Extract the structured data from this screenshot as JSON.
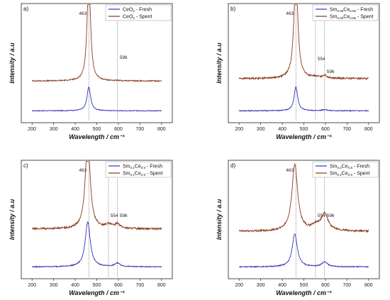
{
  "chart_data": [
    {
      "type": "line",
      "panel_label": "a)",
      "xlabel": "Wavelength / cm⁻¹",
      "ylabel": "Intensity / a.u",
      "xlim": [
        150,
        850
      ],
      "xticks": [
        200,
        300,
        400,
        500,
        600,
        700,
        800
      ],
      "ylim": [
        0,
        100
      ],
      "grid": false,
      "legend_position": "top-right",
      "peaks": [
        {
          "x": 463,
          "label": "463"
        },
        {
          "x": 596,
          "label": "596"
        }
      ],
      "series": [
        {
          "legend": {
            "base": "CeO",
            "sub1": "2",
            "mid": "",
            "sub2": "",
            "suffix": " - Fresh"
          },
          "color": "#3333bb",
          "baseline": 10,
          "noise": 0.3,
          "peaks": [
            [
              463,
              20,
              10
            ]
          ]
        },
        {
          "legend": {
            "base": "CeO",
            "sub1": "2",
            "mid": "",
            "sub2": "",
            "suffix": " - Spent"
          },
          "color": "#8b3a1a",
          "baseline": 35,
          "noise": 0.5,
          "peaks": [
            [
              463,
              93,
              9
            ]
          ]
        }
      ]
    },
    {
      "type": "line",
      "panel_label": "b)",
      "xlabel": "Wavelength / cm⁻¹",
      "ylabel": "Intensity / a.u",
      "xlim": [
        150,
        850
      ],
      "xticks": [
        200,
        300,
        400,
        500,
        600,
        700,
        800
      ],
      "ylim": [
        0,
        100
      ],
      "grid": false,
      "legend_position": "top-right",
      "peaks": [
        {
          "x": 463,
          "label": "463"
        },
        {
          "x": 554,
          "label": "554"
        },
        {
          "x": 596,
          "label": "596"
        }
      ],
      "series": [
        {
          "legend": {
            "base": "Sm",
            "sub1": "0.05",
            "mid": "Ce",
            "sub2": "0.95",
            "suffix": " - Fresh"
          },
          "color": "#3333bb",
          "baseline": 10,
          "noise": 0.4,
          "peaks": [
            [
              463,
              20,
              10
            ],
            [
              596,
              1,
              12
            ]
          ]
        },
        {
          "legend": {
            "base": "Sm",
            "sub1": "0.05",
            "mid": "Ce",
            "sub2": "0.95",
            "suffix": " - Spent"
          },
          "color": "#8b3a1a",
          "baseline": 37,
          "noise": 0.7,
          "peaks": [
            [
              463,
              86,
              11
            ],
            [
              554,
              1,
              20
            ],
            [
              596,
              2.5,
              12
            ]
          ]
        }
      ]
    },
    {
      "type": "line",
      "panel_label": "c)",
      "xlabel": "Wavelength / cm⁻¹",
      "ylabel": "Intensity / a.u",
      "xlim": [
        150,
        850
      ],
      "xticks": [
        200,
        300,
        400,
        500,
        600,
        700,
        800
      ],
      "ylim": [
        0,
        100
      ],
      "grid": false,
      "legend_position": "top-right",
      "peaks": [
        {
          "x": 463,
          "label": "463"
        },
        {
          "x": 554,
          "label": "554"
        },
        {
          "x": 596,
          "label": "596"
        }
      ],
      "series": [
        {
          "legend": {
            "base": "Sm",
            "sub1": "0.1",
            "mid": "Ce",
            "sub2": "0.9",
            "suffix": " - Fresh"
          },
          "color": "#3333bb",
          "baseline": 10,
          "noise": 0.4,
          "peaks": [
            [
              458,
              38,
              14
            ],
            [
              596,
              3,
              15
            ]
          ]
        },
        {
          "legend": {
            "base": "Sm",
            "sub1": "0.1",
            "mid": "Ce",
            "sub2": "0.9",
            "suffix": " - Spent"
          },
          "color": "#8b3a1a",
          "baseline": 42,
          "noise": 0.8,
          "peaks": [
            [
              458,
              78,
              13
            ],
            [
              554,
              3,
              20
            ],
            [
              596,
              4,
              14
            ]
          ]
        }
      ]
    },
    {
      "type": "line",
      "panel_label": "d)",
      "xlabel": "Wavelength / cm⁻¹",
      "ylabel": "Intensity / a.u",
      "xlim": [
        150,
        850
      ],
      "xticks": [
        200,
        300,
        400,
        500,
        600,
        700,
        800
      ],
      "ylim": [
        0,
        100
      ],
      "grid": false,
      "legend_position": "top-right",
      "peaks": [
        {
          "x": 463,
          "label": "463"
        },
        {
          "x": 554,
          "label": "554"
        },
        {
          "x": 596,
          "label": "596"
        }
      ],
      "series": [
        {
          "legend": {
            "base": "Sm",
            "sub1": "0.2",
            "mid": "Ce",
            "sub2": "0.8",
            "suffix": " - Fresh"
          },
          "color": "#3333bb",
          "baseline": 10,
          "noise": 0.4,
          "peaks": [
            [
              458,
              28,
              14
            ],
            [
              596,
              4,
              16
            ]
          ]
        },
        {
          "legend": {
            "base": "Sm",
            "sub1": "0.2",
            "mid": "Ce",
            "sub2": "0.8",
            "suffix": " - Spent"
          },
          "color": "#8b3a1a",
          "baseline": 40,
          "noise": 0.8,
          "peaks": [
            [
              458,
              56,
              16
            ],
            [
              554,
              4,
              22
            ],
            [
              596,
              14,
              20
            ]
          ]
        }
      ]
    }
  ]
}
